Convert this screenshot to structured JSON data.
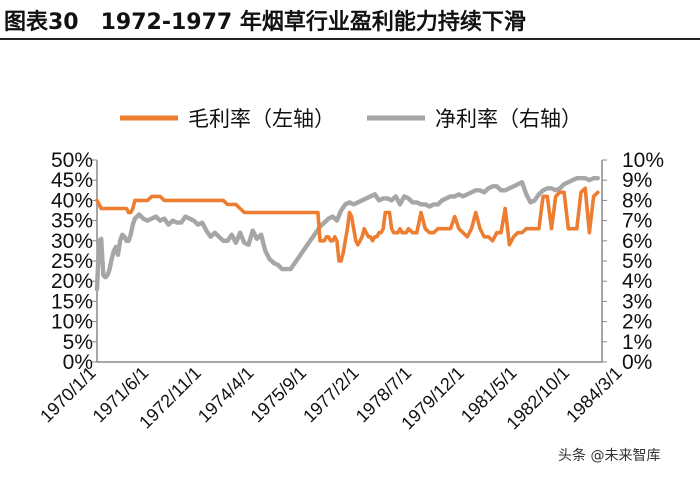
{
  "figure": {
    "title": "图表30　1972-1977 年烟草行业盈利能力持续下滑",
    "watermark": "头条 @未来智库"
  },
  "chart_data": {
    "type": "line",
    "title": "",
    "xlabel": "",
    "ylabel": "",
    "x_tick_labels": [
      "1970/1/1",
      "1971/6/1",
      "1972/11/1",
      "1974/4/1",
      "1975/9/1",
      "1977/2/1",
      "1978/7/1",
      "1979/12/1",
      "1981/5/1",
      "1982/10/1",
      "1984/3/1"
    ],
    "left_axis": {
      "ylim": [
        0,
        50
      ],
      "tick_labels": [
        "0%",
        "5%",
        "10%",
        "15%",
        "20%",
        "25%",
        "30%",
        "35%",
        "40%",
        "45%",
        "50%"
      ]
    },
    "right_axis": {
      "ylim": [
        0,
        10
      ],
      "tick_labels": [
        "0%",
        "1%",
        "2%",
        "3%",
        "4%",
        "5%",
        "6%",
        "7%",
        "8%",
        "9%",
        "10%"
      ]
    },
    "legend": {
      "position": "top",
      "entries": [
        "毛利率（左轴）",
        "净利率（右轴）"
      ]
    },
    "series": [
      {
        "name": "毛利率（左轴）",
        "axis": "left",
        "color": "#ED7D31",
        "x_months": [
          0,
          1,
          2,
          3,
          4,
          5,
          6,
          7,
          8,
          9,
          10,
          11,
          12,
          13,
          14,
          15,
          16,
          17,
          18,
          20,
          22,
          24,
          26,
          28,
          30,
          32,
          34,
          36,
          38,
          40,
          42,
          44,
          46,
          48,
          50,
          52,
          54,
          56,
          58,
          60,
          62,
          64,
          66,
          68,
          70,
          72,
          74,
          76,
          78,
          80,
          82,
          84,
          86,
          88,
          90,
          92,
          94,
          96,
          98,
          100,
          102,
          104,
          105,
          106,
          107,
          108,
          109,
          110,
          111,
          112,
          113,
          114,
          115,
          116,
          117,
          118,
          119,
          120,
          121,
          122,
          123,
          124,
          125,
          126,
          127,
          128,
          129,
          130,
          131,
          132,
          133,
          134,
          135,
          136,
          137,
          138,
          139,
          140,
          141,
          142,
          143,
          144,
          145,
          146,
          147,
          148,
          150,
          152,
          154,
          156,
          158,
          160,
          162,
          164,
          166,
          168,
          170,
          172,
          174,
          176,
          178,
          180,
          182,
          184,
          186,
          188,
          190,
          192,
          194,
          196,
          198,
          200,
          202,
          204,
          206,
          208,
          210,
          212,
          214,
          216,
          218,
          220,
          222,
          224,
          226,
          228,
          230,
          232,
          234,
          236,
          238
        ],
        "values": [
          40,
          39,
          38,
          38,
          38,
          38,
          38,
          38,
          38,
          38,
          38,
          38,
          38,
          38,
          38,
          37,
          37,
          38,
          40,
          40,
          40,
          40,
          41,
          41,
          41,
          40,
          40,
          40,
          40,
          40,
          40,
          40,
          40,
          40,
          40,
          40,
          40,
          40,
          40,
          40,
          39,
          39,
          39,
          38,
          37,
          37,
          37,
          37,
          37,
          37,
          37,
          37,
          37,
          37,
          37,
          37,
          37,
          37,
          37,
          37,
          37,
          37,
          37,
          30,
          30,
          30,
          31,
          31,
          30,
          30,
          31,
          30,
          25,
          25,
          27,
          30,
          33,
          37,
          36,
          33,
          30,
          29,
          30,
          31,
          33,
          32,
          31,
          31,
          30,
          31,
          31,
          32,
          32,
          33,
          37,
          37,
          37,
          33,
          32,
          32,
          32,
          33,
          32,
          32,
          32,
          33,
          32,
          32,
          37,
          33,
          32,
          32,
          33,
          33,
          33,
          33,
          36,
          33,
          32,
          31,
          33,
          37,
          33,
          31,
          31,
          30,
          32,
          32,
          38,
          29,
          31,
          32,
          32,
          33,
          33,
          33,
          33,
          41,
          41,
          33,
          41,
          42,
          42,
          33,
          33,
          33,
          42,
          43,
          32,
          41,
          42
        ],
        "stroke_width": 3.6
      },
      {
        "name": "净利率（右轴）",
        "axis": "right",
        "color": "#A6A6A6",
        "x_months": [
          0,
          1,
          2,
          3,
          4,
          5,
          6,
          7,
          8,
          9,
          10,
          11,
          12,
          13,
          14,
          15,
          16,
          17,
          18,
          20,
          22,
          24,
          26,
          28,
          30,
          32,
          34,
          36,
          38,
          40,
          42,
          44,
          46,
          48,
          50,
          52,
          54,
          56,
          58,
          60,
          62,
          64,
          66,
          68,
          70,
          72,
          74,
          76,
          78,
          80,
          82,
          84,
          86,
          88,
          90,
          92,
          94,
          96,
          98,
          100,
          102,
          104,
          106,
          108,
          110,
          112,
          114,
          116,
          118,
          120,
          122,
          124,
          126,
          128,
          130,
          132,
          134,
          136,
          138,
          140,
          142,
          144,
          146,
          148,
          150,
          152,
          154,
          156,
          158,
          160,
          162,
          164,
          166,
          168,
          170,
          172,
          174,
          176,
          178,
          180,
          182,
          184,
          186,
          188,
          190,
          192,
          194,
          196,
          198,
          200,
          202,
          204,
          206,
          208,
          210,
          212,
          214,
          216,
          218,
          220,
          222,
          224,
          226,
          228,
          230,
          232,
          234,
          236,
          238
        ],
        "values": [
          3.6,
          6.0,
          6.1,
          4.3,
          4.2,
          4.3,
          4.6,
          5.1,
          5.5,
          5.7,
          5.3,
          6.0,
          6.3,
          6.2,
          6.0,
          6.0,
          6.3,
          6.8,
          7.1,
          7.3,
          7.1,
          7.0,
          7.1,
          7.2,
          7.0,
          7.1,
          6.8,
          7.0,
          6.9,
          6.9,
          7.2,
          7.1,
          7.0,
          6.8,
          6.9,
          6.5,
          6.2,
          6.4,
          6.2,
          6.0,
          6.0,
          6.3,
          5.9,
          6.4,
          5.9,
          5.8,
          6.5,
          6.1,
          6.3,
          5.5,
          5.1,
          4.9,
          4.8,
          4.6,
          4.6,
          4.6,
          4.9,
          5.2,
          5.5,
          5.8,
          6.1,
          6.4,
          6.7,
          6.9,
          7.1,
          7.2,
          7.0,
          7.5,
          7.8,
          7.9,
          7.8,
          7.9,
          8.0,
          8.1,
          8.2,
          8.3,
          8.0,
          8.1,
          8.1,
          8.0,
          8.2,
          7.8,
          8.2,
          8.1,
          7.9,
          7.9,
          7.8,
          7.8,
          7.7,
          7.8,
          7.8,
          8.0,
          8.1,
          8.2,
          8.2,
          8.3,
          8.2,
          8.3,
          8.4,
          8.5,
          8.5,
          8.4,
          8.6,
          8.7,
          8.7,
          8.5,
          8.5,
          8.6,
          8.7,
          8.8,
          8.9,
          8.3,
          7.9,
          8.0,
          8.3,
          8.5,
          8.6,
          8.6,
          8.5,
          8.6,
          8.8,
          8.9,
          9.0,
          9.1,
          9.1,
          9.1,
          9.0,
          9.1,
          9.1
        ],
        "stroke_width": 4.4
      }
    ]
  }
}
